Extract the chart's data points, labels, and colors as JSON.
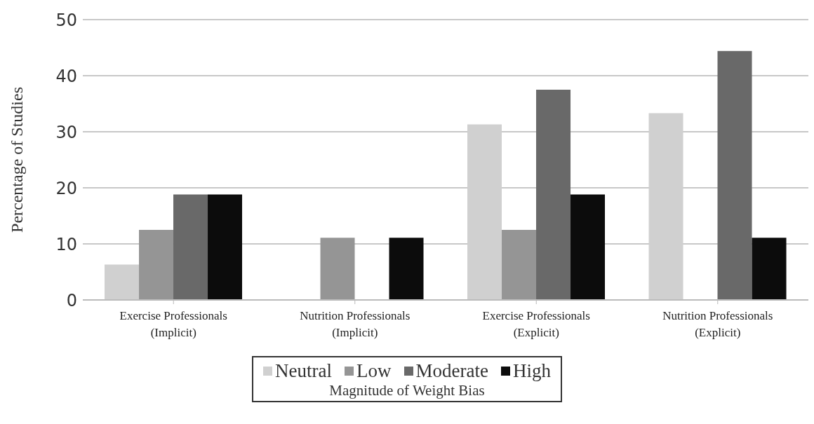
{
  "chart_data": {
    "type": "bar",
    "ylabel": "Percentage  of Studies",
    "legend_title": "Magnitude of Weight Bias",
    "categories": [
      "Exercise Professionals\n(Implicit)",
      "Nutrition Professionals\n(Implicit)",
      "Exercise Professionals\n(Explicit)",
      "Nutrition Professionals\n(Explicit)"
    ],
    "series": [
      {
        "name": "Neutral",
        "color": "#d0d0d0",
        "values": [
          6.3,
          0,
          31.3,
          33.3
        ]
      },
      {
        "name": "Low",
        "color": "#959595",
        "values": [
          12.5,
          11.1,
          12.5,
          0
        ]
      },
      {
        "name": "Moderate",
        "color": "#696969",
        "values": [
          18.8,
          0,
          37.5,
          44.4
        ]
      },
      {
        "name": "High",
        "color": "#0c0c0c",
        "values": [
          18.8,
          11.1,
          18.8,
          11.1
        ]
      }
    ],
    "ylim": [
      0,
      50
    ],
    "yticks": [
      0,
      10,
      20,
      30,
      40,
      50
    ],
    "grid": "y",
    "legend": "bottom"
  }
}
